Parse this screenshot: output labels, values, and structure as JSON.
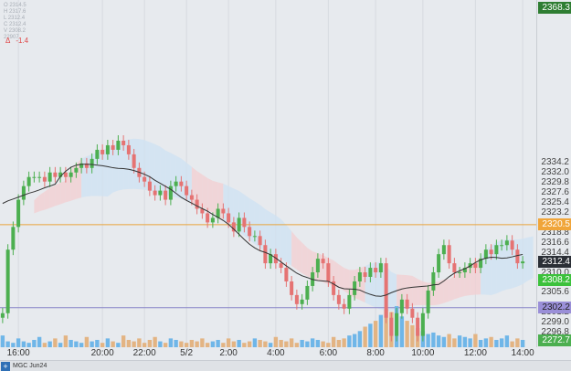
{
  "chart_data": {
    "type": "candlestick",
    "symbol_tab": "MGC Jun24",
    "y_range": [
      2293.5,
      2370.0
    ],
    "x_ticks": [
      {
        "label": "16:00",
        "bar": 3
      },
      {
        "label": "20:00",
        "bar": 19
      },
      {
        "label": "22:00",
        "bar": 27
      },
      {
        "label": "5/2",
        "bar": 35
      },
      {
        "label": "2:00",
        "bar": 43
      },
      {
        "label": "4:00",
        "bar": 52
      },
      {
        "label": "6:00",
        "bar": 62
      },
      {
        "label": "8:00",
        "bar": 71
      },
      {
        "label": "10:00",
        "bar": 80
      },
      {
        "label": "12:00",
        "bar": 90
      },
      {
        "label": "14:00",
        "bar": 99
      }
    ],
    "y_ticks": [
      "2334.2",
      "2332.0",
      "2329.8",
      "2327.6",
      "2325.4",
      "2323.2",
      "2318.8",
      "2316.6",
      "2314.4",
      "2310.0",
      "2305.6",
      "2301.2",
      "2299.0",
      "2296.8"
    ],
    "price_badges": [
      {
        "label": "2368.3",
        "color": "#2e7d32",
        "text": "#ffffff"
      },
      {
        "label": "2320.5",
        "color": "#f0a53a",
        "text": "#ffffff"
      },
      {
        "label": "2312.4",
        "color": "#2b2f36",
        "text": "#ffffff"
      },
      {
        "label": "2308.2",
        "color": "#3cc13c",
        "text": "#ffffff"
      },
      {
        "label": "2302.2",
        "color": "#9a8fd8",
        "text": "#222222"
      },
      {
        "label": "2272.7",
        "color": "#4caf50",
        "text": "#ffffff"
      }
    ],
    "horizontal_lines": [
      {
        "price": 2320.5,
        "color": "#e8a33c"
      },
      {
        "price": 2302.2,
        "color": "#8a86c8"
      }
    ],
    "legend_lines": [
      "O 2314.5",
      "H 2317.6",
      "L 2312.4",
      "C 2312.4",
      "V 2308.2",
      "22907"
    ],
    "delta_labels": [
      "Δ",
      "-1.4"
    ],
    "closes": [
      2301,
      2315,
      2320,
      2326,
      2329,
      2331,
      2331,
      2331,
      2330,
      2332,
      2331,
      2332,
      2331,
      2332,
      2333,
      2334,
      2333,
      2335,
      2337,
      2336,
      2338,
      2337,
      2339,
      2338,
      2336,
      2333,
      2331,
      2330,
      2328,
      2327,
      2328,
      2326,
      2329,
      2330,
      2329,
      2327,
      2326,
      2324,
      2323,
      2321,
      2322,
      2324,
      2323,
      2321,
      2319,
      2322,
      2320,
      2318,
      2318,
      2316,
      2312,
      2314,
      2312,
      2311,
      2308,
      2305,
      2303,
      2304,
      2307,
      2310,
      2313,
      2312,
      2308,
      2305,
      2303,
      2302,
      2305,
      2308,
      2310,
      2309,
      2311,
      2310,
      2312,
      2300,
      2296,
      2301,
      2304,
      2302,
      2300,
      2296,
      2301,
      2306,
      2310,
      2314,
      2316,
      2312,
      2310,
      2310,
      2311,
      2312,
      2311,
      2313,
      2315,
      2314,
      2316,
      2316,
      2317,
      2315,
      2312,
      2312.4
    ],
    "volumes": [
      8,
      4,
      3,
      6,
      4,
      3,
      5,
      7,
      3,
      4,
      6,
      3,
      8,
      5,
      4,
      3,
      7,
      4,
      5,
      3,
      6,
      4,
      3,
      8,
      5,
      4,
      6,
      3,
      5,
      7,
      4,
      3,
      6,
      5,
      4,
      3,
      5,
      4,
      6,
      3,
      4,
      5,
      3,
      6,
      4,
      5,
      3,
      4,
      6,
      5,
      4,
      3,
      7,
      5,
      4,
      6,
      3,
      5,
      4,
      6,
      5,
      4,
      3,
      7,
      5,
      6,
      8,
      9,
      11,
      14,
      16,
      18,
      22,
      26,
      24,
      28,
      21,
      18,
      15,
      13,
      11,
      9,
      10,
      8,
      7,
      9,
      6,
      8,
      7,
      6,
      9,
      5,
      6,
      7,
      5,
      6,
      8,
      4,
      6,
      5
    ]
  }
}
